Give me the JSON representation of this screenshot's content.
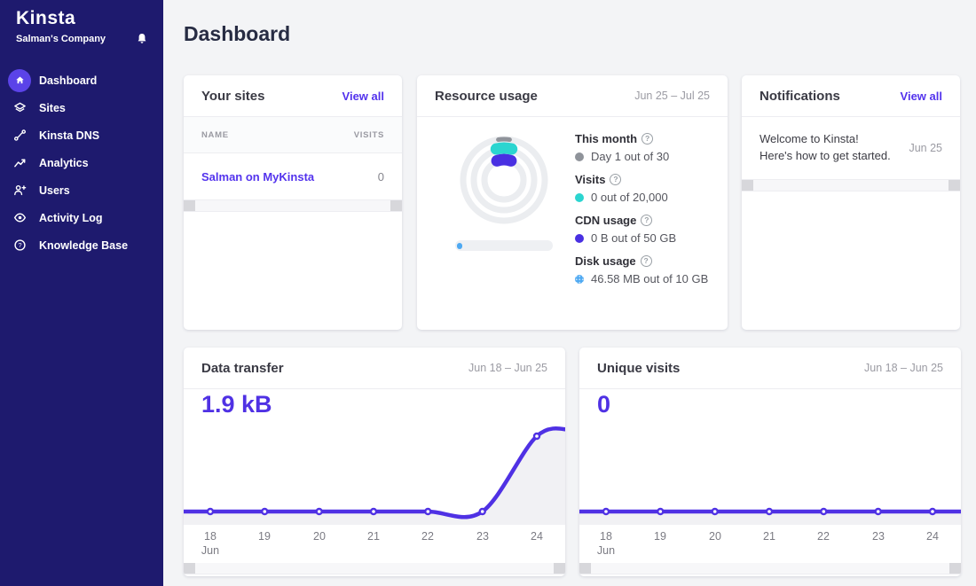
{
  "colors": {
    "sidebar_bg": "#1e1a6e",
    "accent": "#5333ed",
    "line": "#4f31e4",
    "active_item": "#5b43e8",
    "teal": "#2bd5d0",
    "gray_dot": "#8f939a",
    "cdn_purple": "#4930e2",
    "disk_blue": "#4ea9f2",
    "page_bg": "#f3f4f6",
    "area_fill": "#f1f1f4"
  },
  "sidebar": {
    "logo": "Kinsta",
    "company": "Salman's Company",
    "items": [
      {
        "label": "Dashboard",
        "active": true
      },
      {
        "label": "Sites",
        "active": false
      },
      {
        "label": "Kinsta DNS",
        "active": false
      },
      {
        "label": "Analytics",
        "active": false
      },
      {
        "label": "Users",
        "active": false
      },
      {
        "label": "Activity Log",
        "active": false
      },
      {
        "label": "Knowledge Base",
        "active": false
      }
    ]
  },
  "page": {
    "title": "Dashboard"
  },
  "cards": {
    "your_sites": {
      "title": "Your sites",
      "action": "View all",
      "col_name": "NAME",
      "col_visits": "VISITS",
      "rows": [
        {
          "name": "Salman on MyKinsta",
          "visits": "0"
        }
      ]
    },
    "resource_usage": {
      "title": "Resource usage",
      "range": "Jun 25 – Jul 25",
      "legend": [
        {
          "label": "This month",
          "value": "Day 1 out of 30",
          "color": "#8f939a"
        },
        {
          "label": "Visits",
          "value": "0 out of 20,000",
          "color": "#2bd5d0"
        },
        {
          "label": "CDN usage",
          "value": "0 B out of 50 GB",
          "color": "#4930e2"
        },
        {
          "label": "Disk usage",
          "value": "46.58 MB out of 10 GB",
          "color": "#4ea9f2"
        }
      ]
    },
    "notifications": {
      "title": "Notifications",
      "action": "View all",
      "items": [
        {
          "text": "Welcome to Kinsta! Here's how to get started.",
          "date": "Jun 25"
        }
      ]
    }
  },
  "chart_data": [
    {
      "type": "line",
      "title": "Data transfer",
      "range": "Jun 18 – Jun 25",
      "total": "1.9 kB",
      "unit": "kB",
      "x_labels": [
        "18",
        "19",
        "20",
        "21",
        "22",
        "23",
        "24"
      ],
      "x_sublabel": "Jun",
      "values": [
        0,
        0,
        0,
        0,
        0,
        0,
        1.9
      ],
      "ylim": [
        0,
        1.9
      ],
      "grid": false,
      "legend_position": "none"
    },
    {
      "type": "line",
      "title": "Unique visits",
      "range": "Jun 18 – Jun 25",
      "total": "0",
      "unit": "visits",
      "x_labels": [
        "18",
        "19",
        "20",
        "21",
        "22",
        "23",
        "24"
      ],
      "x_sublabel": "Jun",
      "values": [
        0,
        0,
        0,
        0,
        0,
        0,
        0
      ],
      "ylim": [
        0,
        1
      ],
      "grid": false,
      "legend_position": "none"
    }
  ]
}
